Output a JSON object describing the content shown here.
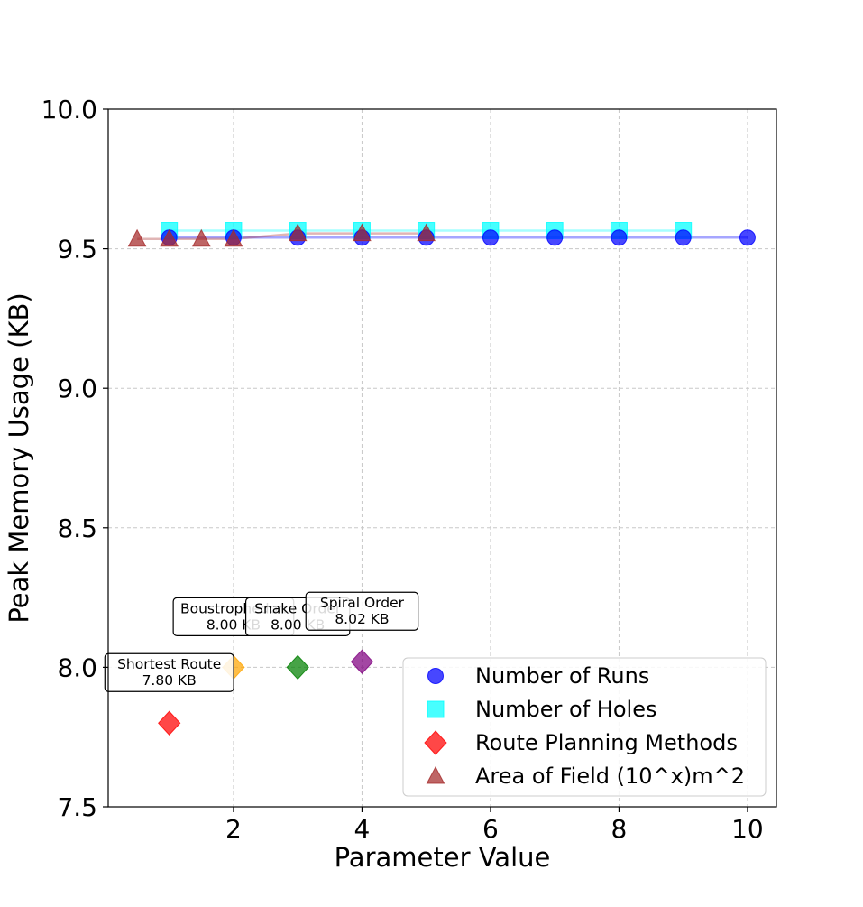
{
  "chart_data": {
    "type": "scatter",
    "xlabel": "Parameter Value",
    "ylabel": "Peak Memory Usage (KB)",
    "xlim": [
      0.05,
      10.45
    ],
    "ylim": [
      7.5,
      10.0
    ],
    "xticks": [
      2,
      4,
      6,
      8,
      10
    ],
    "yticks": [
      7.5,
      8.0,
      8.5,
      9.0,
      9.5,
      10.0
    ],
    "xtick_labels": [
      "2",
      "4",
      "6",
      "8",
      "10"
    ],
    "ytick_labels": [
      "7.5",
      "8.0",
      "8.5",
      "9.0",
      "9.5",
      "10.0"
    ],
    "grid": true,
    "legend_position": "lower-right",
    "series": [
      {
        "name": "Number of Runs",
        "marker": "circle",
        "color": "#0000ff",
        "line": true,
        "x": [
          1,
          2,
          3,
          4,
          5,
          6,
          7,
          8,
          9,
          10
        ],
        "y": [
          9.54,
          9.54,
          9.54,
          9.54,
          9.54,
          9.54,
          9.54,
          9.54,
          9.54,
          9.54
        ]
      },
      {
        "name": "Number of Holes",
        "marker": "square",
        "color": "#00ffff",
        "line": true,
        "x": [
          1,
          2,
          3,
          4,
          5,
          6,
          7,
          8,
          9
        ],
        "y": [
          9.565,
          9.565,
          9.565,
          9.565,
          9.565,
          9.565,
          9.565,
          9.565,
          9.565
        ]
      },
      {
        "name": "Route Planning Methods",
        "marker": "diamond",
        "color": "#ff0000",
        "line": false,
        "points": [
          {
            "x": 1,
            "y": 7.8,
            "color": "#ff0000",
            "label": "Shortest Route",
            "value_label": "7.80 KB"
          },
          {
            "x": 2,
            "y": 8.0,
            "color": "#ffa500",
            "label": "Boustrophedon",
            "value_label": "8.00 KB"
          },
          {
            "x": 3,
            "y": 8.0,
            "color": "#008000",
            "label": "Snake Order",
            "value_label": "8.00 KB"
          },
          {
            "x": 4,
            "y": 8.02,
            "color": "#800080",
            "label": "Spiral Order",
            "value_label": "8.02 KB"
          }
        ]
      },
      {
        "name": "Area of Field (10^x)m^2",
        "marker": "triangle",
        "color": "#a52a2a",
        "line": true,
        "x": [
          0.5,
          1,
          1.5,
          2,
          3,
          4,
          5
        ],
        "y": [
          9.535,
          9.535,
          9.535,
          9.535,
          9.555,
          9.555,
          9.555
        ]
      }
    ]
  }
}
